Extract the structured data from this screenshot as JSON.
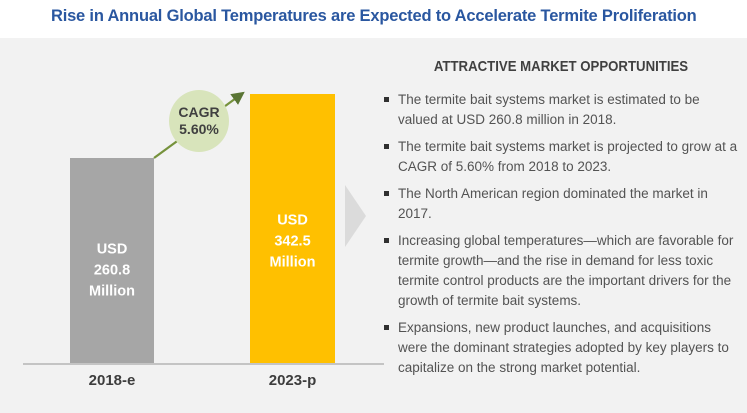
{
  "title": "Rise in Annual Global Temperatures are Expected to Accelerate Termite Proliferation",
  "chart_data": {
    "type": "bar",
    "title": "Rise in Annual Global Temperatures are Expected to Accelerate Termite Proliferation",
    "categories": [
      "2018-e",
      "2023-p"
    ],
    "values": [
      260.8,
      342.5
    ],
    "unit": "USD Million",
    "ylim": [
      0,
      342.5
    ],
    "grid": false,
    "legend": false,
    "bar_colors": [
      "#a6a6a6",
      "#ffc000"
    ],
    "bar_value_labels": [
      [
        "USD",
        "260.8",
        "Million"
      ],
      [
        "USD",
        "342.5",
        "Million"
      ]
    ],
    "cagr": {
      "label": "CAGR",
      "value": "5.60%"
    }
  },
  "opportunities": {
    "heading": "ATTRACTIVE MARKET OPPORTUNITIES",
    "bullets": [
      "The termite bait systems market is estimated to be valued at USD 260.8 million in 2018.",
      "The termite bait systems market is projected to grow at a CAGR of 5.60% from 2018 to 2023.",
      "The North American region dominated the market in 2017.",
      "Increasing global temperatures—which are favorable for termite growth—and the rise in demand for less toxic termite control products are the important drivers for the growth of termite bait systems.",
      "Expansions, new product launches, and acquisitions were the dominant strategies adopted by key players to capitalize on the strong market potential."
    ]
  },
  "colors": {
    "title_blue": "#2a57a0",
    "background_gray": "#f2f2f2",
    "bar_2018": "#a6a6a6",
    "bar_2023": "#ffc000",
    "cagr_bubble": "#d8e4bb",
    "arrow_green": "#76923c",
    "chevron_gray": "#dbdbdb",
    "text_dark": "#404040"
  }
}
